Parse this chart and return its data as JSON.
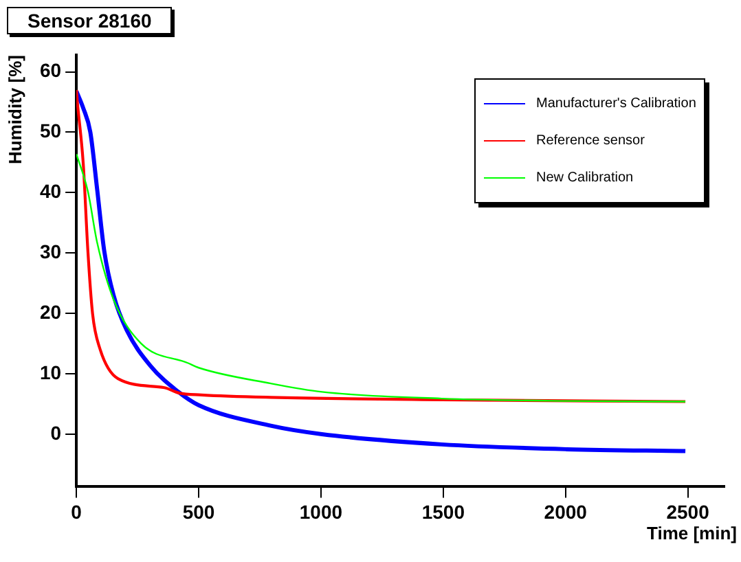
{
  "chart_data": {
    "type": "line",
    "title": "Sensor 28160",
    "xlabel": "Time [min]",
    "ylabel": "Humidity [%]",
    "xlim": [
      0,
      2650
    ],
    "ylim": [
      -8.7,
      62.8
    ],
    "xticks": [
      0,
      500,
      1000,
      1500,
      2000,
      2500
    ],
    "yticks": [
      0,
      10,
      20,
      30,
      40,
      50,
      60
    ],
    "grid": false,
    "legend": "top right",
    "marker": "none",
    "line_style": "solid",
    "series": [
      {
        "name": "Manufacturer's Calibration",
        "color": "#0000ff",
        "x": [
          0,
          28,
          57,
          85,
          114,
          152,
          206,
          303,
          417,
          500,
          795,
          1004,
          1494,
          2006,
          2490
        ],
        "values": [
          56.8,
          54,
          50,
          40.5,
          30.3,
          23,
          17.2,
          11.3,
          7,
          4.8,
          1.4,
          0,
          -1.7,
          -2.5,
          -2.8
        ]
      },
      {
        "name": "Reference sensor",
        "color": "#ff0000",
        "x": [
          0,
          4,
          28,
          47,
          66,
          95,
          170,
          360,
          420,
          511,
          795,
          1494,
          2490
        ],
        "values": [
          57,
          55,
          44.8,
          30.3,
          20,
          14.3,
          9.2,
          7.7,
          6.8,
          6.5,
          6.1,
          5.7,
          5.4
        ]
      },
      {
        "name": "New Calibration",
        "color": "#00ff00",
        "x": [
          0,
          47,
          85,
          152,
          265,
          455,
          500,
          795,
          1004,
          1494,
          2006,
          2490
        ],
        "values": [
          46.4,
          40.2,
          31.7,
          22.3,
          15,
          11.8,
          11,
          8.4,
          7,
          5.9,
          5.5,
          5.4
        ]
      }
    ]
  }
}
